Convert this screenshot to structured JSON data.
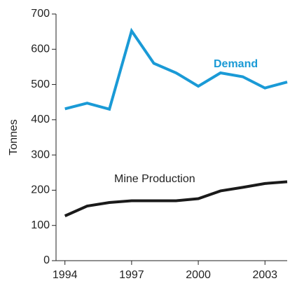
{
  "chart_data": {
    "type": "line",
    "y_label": "Tonnes",
    "x": [
      1994,
      1995,
      1996,
      1997,
      1998,
      1999,
      2000,
      2001,
      2002,
      2003,
      2004
    ],
    "series": [
      {
        "name": "Demand",
        "color": "#1a9ad6",
        "values": [
          431,
          447,
          430,
          652,
          560,
          533,
          495,
          533,
          522,
          490,
          507
        ]
      },
      {
        "name": "Mine Production",
        "color": "#1a1a1a",
        "values": [
          127,
          155,
          165,
          170,
          170,
          170,
          176,
          198,
          208,
          219,
          224
        ]
      }
    ],
    "xlim": [
      1993.6,
      2004
    ],
    "xticks": [
      1994,
      1997,
      2000,
      2003
    ],
    "ylim": [
      0,
      700
    ],
    "yticks": [
      0,
      100,
      200,
      300,
      400,
      500,
      600,
      700
    ]
  }
}
